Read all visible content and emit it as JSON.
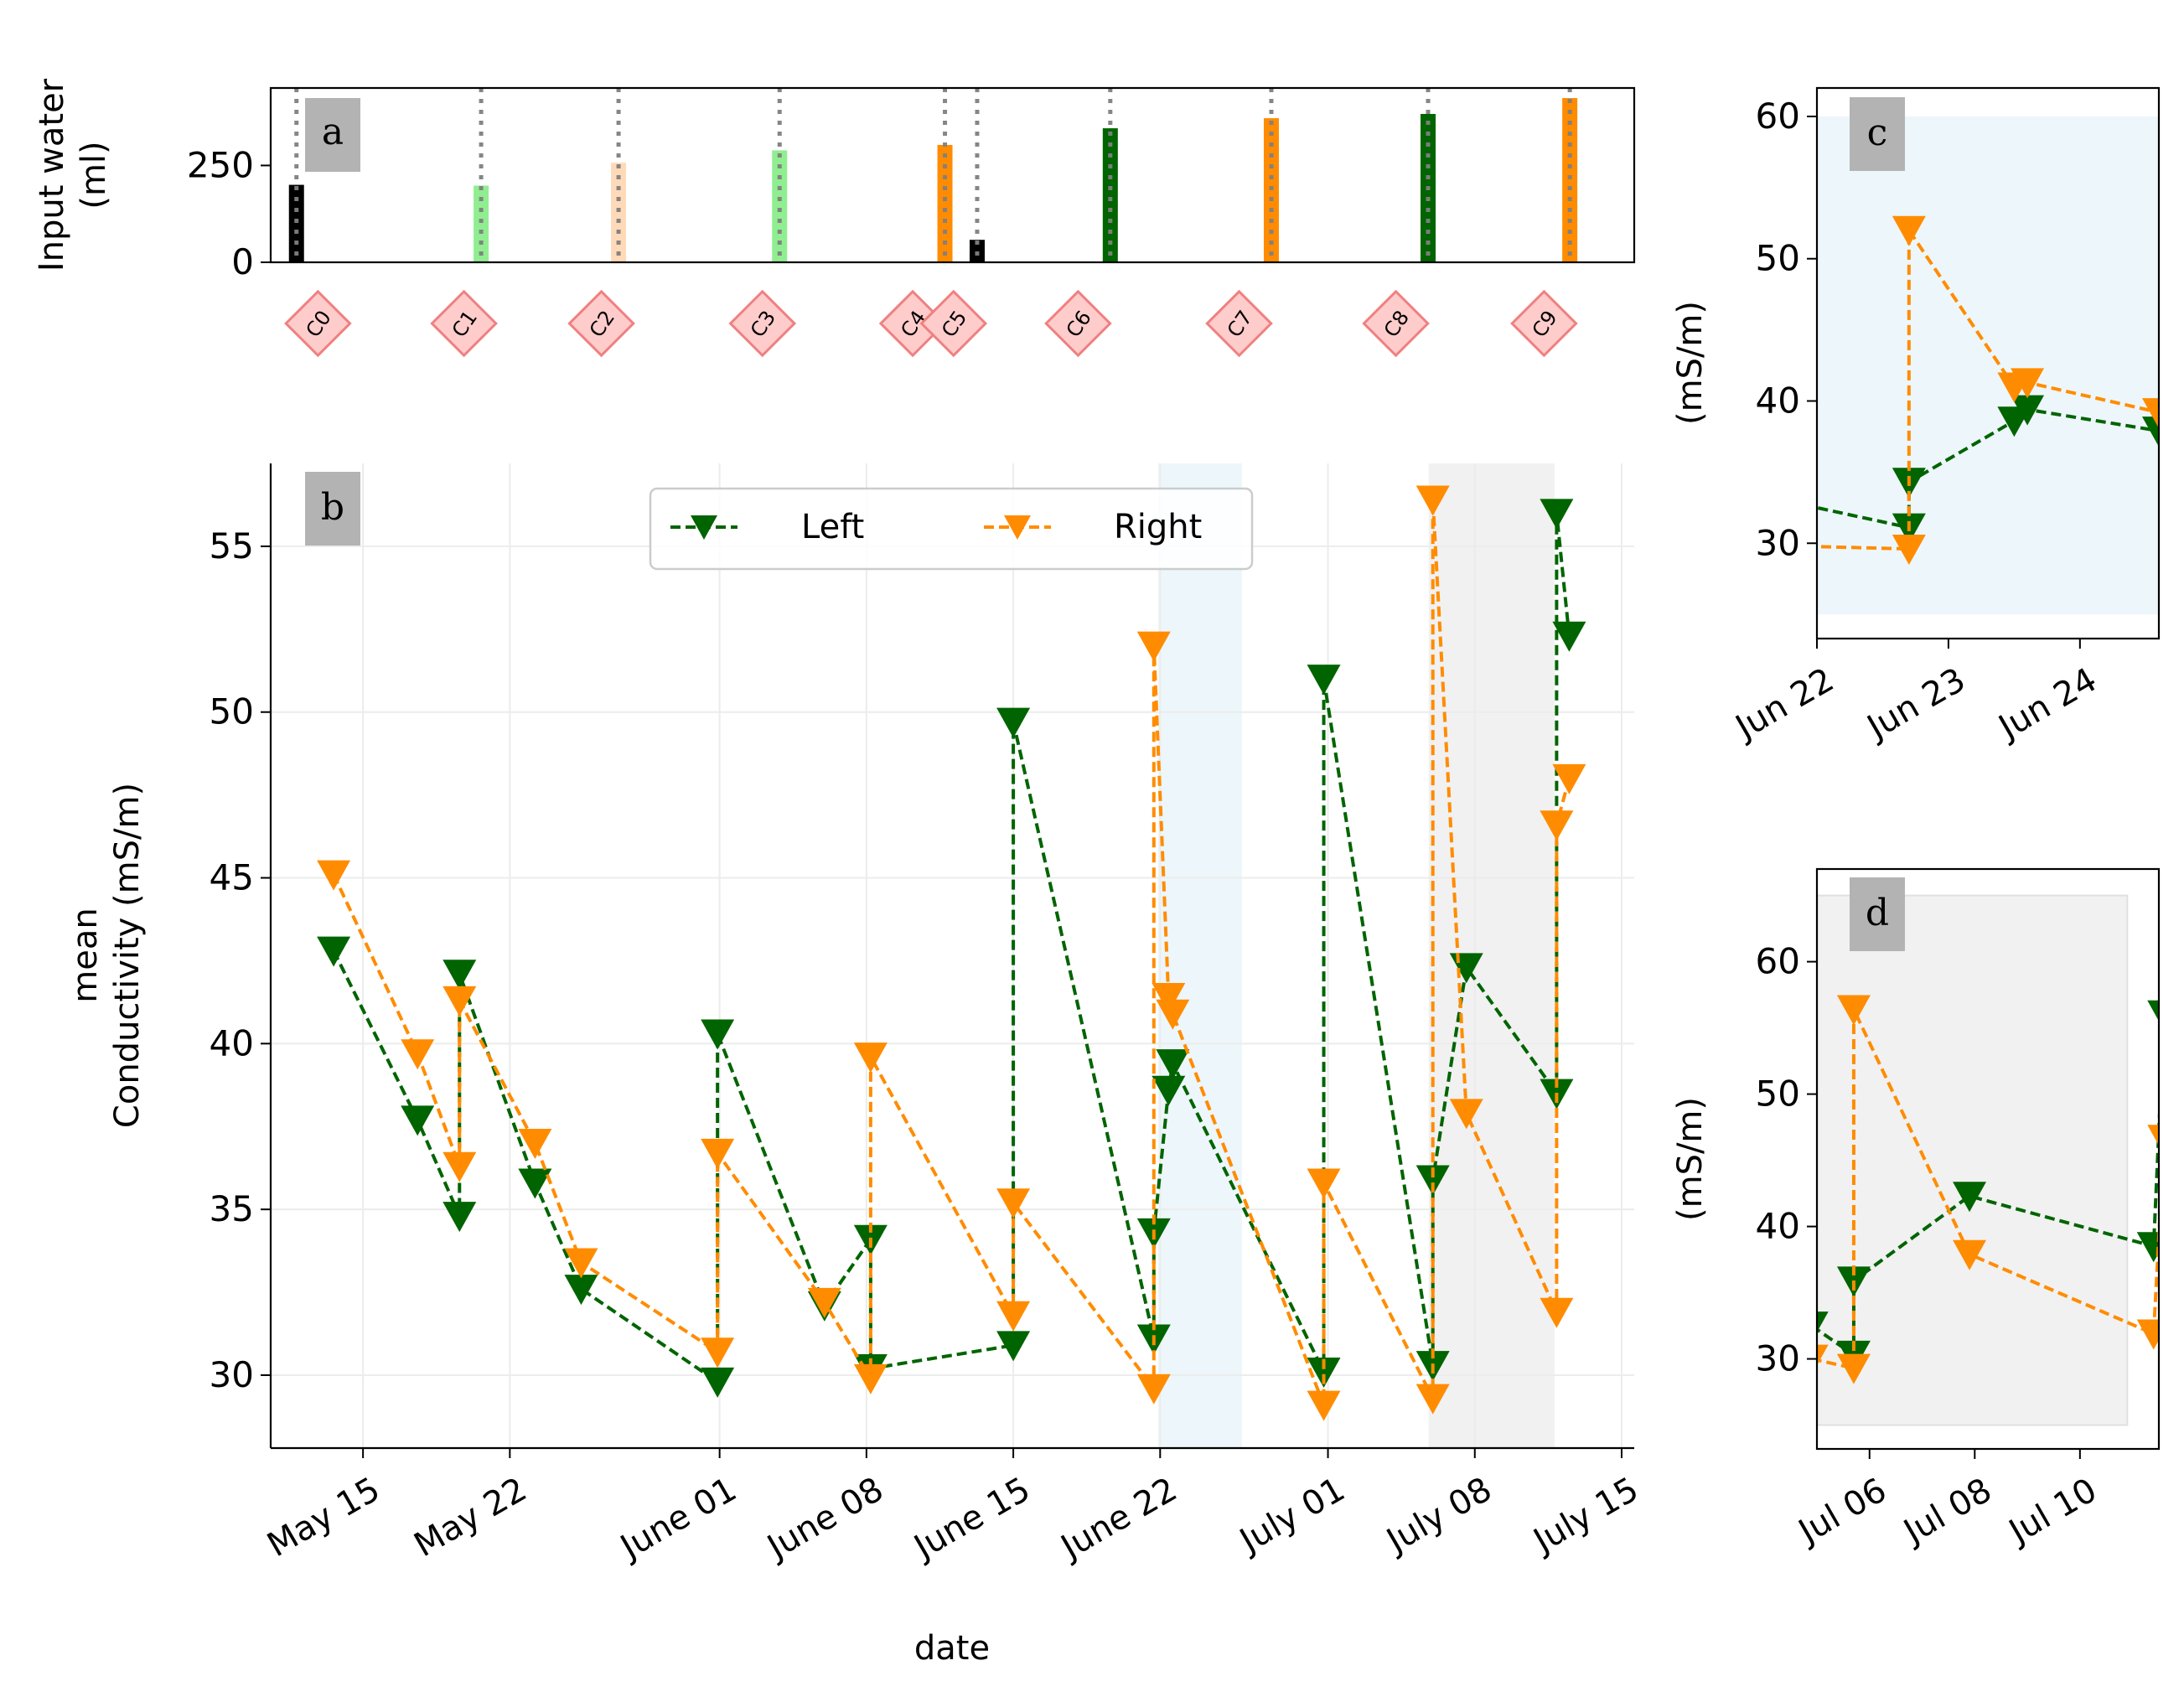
{
  "colors": {
    "left": "#006400",
    "right": "#ff8c00",
    "grid": "#ececec",
    "blue_shade": "#add8e6",
    "gray_shade": "#c8c8c8",
    "marker_fill": "#ffcccc",
    "marker_edge": "#f08080",
    "label_box": "#b3b3b3"
  },
  "chart_data": [
    {
      "panel": "a",
      "type": "bar",
      "ylabel": "Input water\n(ml)",
      "ylim": [
        0,
        450
      ],
      "yticks": [
        0,
        250
      ],
      "xlim_days": [
        0,
        63.5
      ],
      "bars": [
        {
          "day": 1.2,
          "value": 200,
          "color": "#000000"
        },
        {
          "day": 9.8,
          "value": 198,
          "color": "#90ee90"
        },
        {
          "day": 16.2,
          "value": 257,
          "color": "#ffdab9"
        },
        {
          "day": 23.7,
          "value": 289,
          "color": "#90ee90"
        },
        {
          "day": 31.4,
          "value": 303,
          "color": "#ff8c00"
        },
        {
          "day": 32.9,
          "value": 58,
          "color": "#000000"
        },
        {
          "day": 39.1,
          "value": 346,
          "color": "#006400"
        },
        {
          "day": 46.6,
          "value": 372,
          "color": "#ff8c00"
        },
        {
          "day": 53.9,
          "value": 383,
          "color": "#006400"
        },
        {
          "day": 60.5,
          "value": 424,
          "color": "#ff8c00"
        }
      ],
      "event_markers": [
        {
          "label": "C0",
          "day": 2.2
        },
        {
          "label": "C1",
          "day": 9.0
        },
        {
          "label": "C2",
          "day": 15.4
        },
        {
          "label": "C3",
          "day": 22.9
        },
        {
          "label": "C4",
          "day": 29.9
        },
        {
          "label": "C5",
          "day": 31.8
        },
        {
          "label": "C6",
          "day": 37.6
        },
        {
          "label": "C7",
          "day": 45.1
        },
        {
          "label": "C8",
          "day": 52.4
        },
        {
          "label": "C9",
          "day": 59.3
        }
      ]
    },
    {
      "panel": "b",
      "type": "line",
      "xlabel": "date",
      "ylabel": "mean\nConductivity (mS/m)",
      "ylim": [
        27.8,
        57.5
      ],
      "yticks": [
        30,
        35,
        40,
        45,
        50,
        55
      ],
      "xlim_days": [
        -4.4,
        60.6
      ],
      "date_origin": "May 15",
      "xticks": [
        {
          "day": 0,
          "label": "May 15"
        },
        {
          "day": 7,
          "label": "May 22"
        },
        {
          "day": 17,
          "label": "June 01"
        },
        {
          "day": 24,
          "label": "June 08"
        },
        {
          "day": 31,
          "label": "June 15"
        },
        {
          "day": 38,
          "label": "June 22"
        },
        {
          "day": 46,
          "label": "July 01"
        },
        {
          "day": 53,
          "label": "July 08"
        },
        {
          "day": 60,
          "label": "July 15"
        }
      ],
      "shaded_ranges": [
        {
          "from": 37.9,
          "to": 41.9,
          "color": "blue"
        },
        {
          "from": 50.8,
          "to": 56.8,
          "color": "gray"
        }
      ],
      "legend": {
        "placement": "top-center",
        "entries": [
          "Left",
          "Right"
        ]
      },
      "series": [
        {
          "name": "Left",
          "color": "#006400",
          "x": [
            -1.4,
            2.6,
            4.6,
            4.6,
            8.2,
            10.4,
            16.9,
            16.9,
            22.0,
            24.2,
            24.2,
            31.0,
            31.0,
            37.7,
            37.7,
            38.4,
            38.6,
            45.8,
            45.8,
            51.0,
            51.0,
            52.6,
            56.9,
            56.9,
            57.5
          ],
          "y": [
            42.8,
            37.7,
            34.8,
            42.1,
            35.8,
            32.6,
            29.8,
            40.3,
            32.1,
            34.1,
            30.2,
            30.9,
            49.7,
            31.1,
            34.3,
            38.6,
            39.4,
            30.1,
            51.0,
            30.3,
            35.9,
            42.3,
            38.5,
            56.0,
            52.3
          ]
        },
        {
          "name": "Right",
          "color": "#ff8c00",
          "x": [
            -1.4,
            2.6,
            4.6,
            4.6,
            8.2,
            10.4,
            16.9,
            16.9,
            22.0,
            24.2,
            24.2,
            31.0,
            31.0,
            37.7,
            37.7,
            38.4,
            38.6,
            45.8,
            45.8,
            51.0,
            51.0,
            52.6,
            56.9,
            56.9,
            57.5
          ],
          "y": [
            45.1,
            39.7,
            36.3,
            41.3,
            37.0,
            33.4,
            30.7,
            36.7,
            32.2,
            29.9,
            39.6,
            31.8,
            35.2,
            29.6,
            52.0,
            41.4,
            40.9,
            29.1,
            35.8,
            29.3,
            56.4,
            37.9,
            31.9,
            46.6,
            48.0
          ]
        }
      ]
    },
    {
      "panel": "c",
      "type": "line",
      "ylabel": "(mS/m)",
      "ylim": [
        23.3,
        62
      ],
      "yticks": [
        30,
        40,
        50,
        60
      ],
      "xlim_days": [
        38,
        40.6
      ],
      "xticks": [
        {
          "day": 38,
          "label": "Jun 22"
        },
        {
          "day": 39,
          "label": "Jun 23"
        },
        {
          "day": 40,
          "label": "Jun 24"
        }
      ],
      "shaded_ranges": [
        {
          "from": 38,
          "to": 40.6,
          "y_from": 25,
          "y_to": 60,
          "color": "blue"
        }
      ],
      "series": [
        {
          "name": "Left",
          "color": "#006400",
          "x": [
            37.0,
            38.7,
            38.7,
            39.5,
            39.6,
            40.6
          ],
          "y": [
            34.5,
            31.1,
            34.3,
            38.6,
            39.4,
            37.9
          ]
        },
        {
          "name": "Right",
          "color": "#ff8c00",
          "x": [
            37.0,
            38.7,
            38.7,
            39.5,
            39.6,
            40.6
          ],
          "y": [
            30.0,
            29.6,
            52.0,
            41.0,
            41.3,
            39.2
          ]
        }
      ]
    },
    {
      "panel": "d",
      "type": "line",
      "ylabel": "(mS/m)",
      "ylim": [
        23.2,
        67
      ],
      "yticks": [
        30,
        40,
        50,
        60
      ],
      "xlim_days": [
        51.0,
        57.5
      ],
      "xticks": [
        {
          "day": 52,
          "label": "Jul 06"
        },
        {
          "day": 54,
          "label": "Jul 08"
        },
        {
          "day": 56,
          "label": "Jul 10"
        }
      ],
      "shaded_ranges": [
        {
          "from": 51.0,
          "to": 56.9,
          "y_from": 25,
          "y_to": 65,
          "color": "gray"
        }
      ],
      "series": [
        {
          "name": "Left",
          "color": "#006400",
          "x": [
            50.9,
            51.7,
            51.7,
            53.9,
            57.4,
            57.6
          ],
          "y": [
            32.5,
            30.3,
            35.9,
            42.3,
            38.5,
            56.0
          ]
        },
        {
          "name": "Right",
          "color": "#ff8c00",
          "x": [
            50.9,
            51.7,
            51.7,
            53.9,
            57.4,
            57.6
          ],
          "y": [
            30.0,
            29.3,
            56.4,
            37.9,
            31.9,
            46.6
          ]
        }
      ]
    }
  ],
  "labels": {
    "panel_a": "a",
    "panel_b": "b",
    "panel_c": "c",
    "panel_d": "d",
    "ylabel_a_line1": "Input water",
    "ylabel_a_line2": "(ml)",
    "ylabel_b_line1": "mean",
    "ylabel_b_line2": "Conductivity (mS/m)",
    "ylabel_c": "(mS/m)",
    "ylabel_d": "(mS/m)",
    "xlabel_b": "date",
    "legend_left": "Left",
    "legend_right": "Right"
  }
}
